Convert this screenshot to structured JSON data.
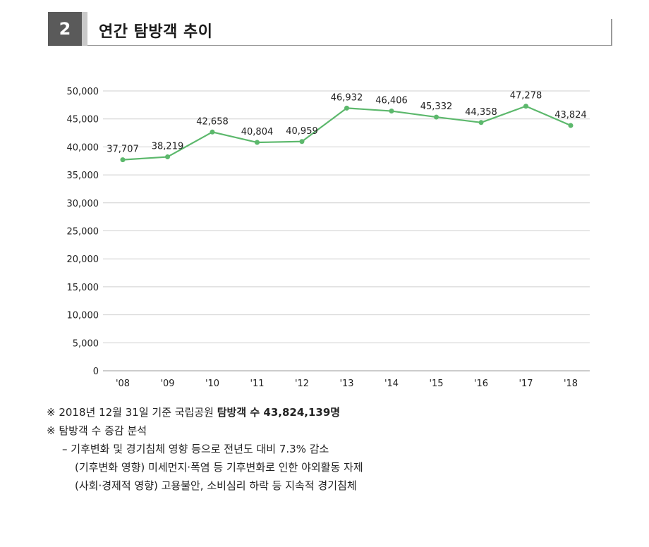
{
  "header": {
    "number": "2",
    "title": "연간 탐방객 추이"
  },
  "chart_data": {
    "type": "line",
    "title": "",
    "xlabel": "",
    "ylabel": "",
    "categories": [
      "'08",
      "'09",
      "'10",
      "'11",
      "'12",
      "'13",
      "'14",
      "'15",
      "'16",
      "'17",
      "'18"
    ],
    "values": [
      37707,
      38219,
      42658,
      40804,
      40959,
      46932,
      46406,
      45332,
      44358,
      47278,
      43824
    ],
    "data_labels": [
      "37,707",
      "38,219",
      "42,658",
      "40,804",
      "40,959",
      "46,932",
      "46,406",
      "45,332",
      "44,358",
      "47,278",
      "43,824"
    ],
    "ylim": [
      0,
      50000
    ],
    "yticks": [
      0,
      5000,
      10000,
      15000,
      20000,
      25000,
      30000,
      35000,
      40000,
      45000,
      50000
    ],
    "ytick_labels": [
      "0",
      "5,000",
      "10,000",
      "15,000",
      "20,000",
      "25,000",
      "30,000",
      "35,000",
      "40,000",
      "45,000",
      "50,000"
    ],
    "grid": true,
    "legend": "none",
    "line_color": "#5cb86c",
    "grid_color": "#cfcfcf"
  },
  "notes": {
    "line1_prefix": "※ 2018년 12월 31일 기준 국립공원 ",
    "line1_bold": "탐방객 수 43,824,139명",
    "line2": "※ 탐방객 수 증감 분석",
    "line3": "– 기후변화 및 경기침체 영향 등으로 전년도 대비 7.3% 감소",
    "line4": "(기후변화 영향) 미세먼지·폭염 등 기후변화로 인한 야외활동 자제",
    "line5": "(사회·경제적 영향) 고용불안, 소비심리 하락 등 지속적 경기침체"
  }
}
